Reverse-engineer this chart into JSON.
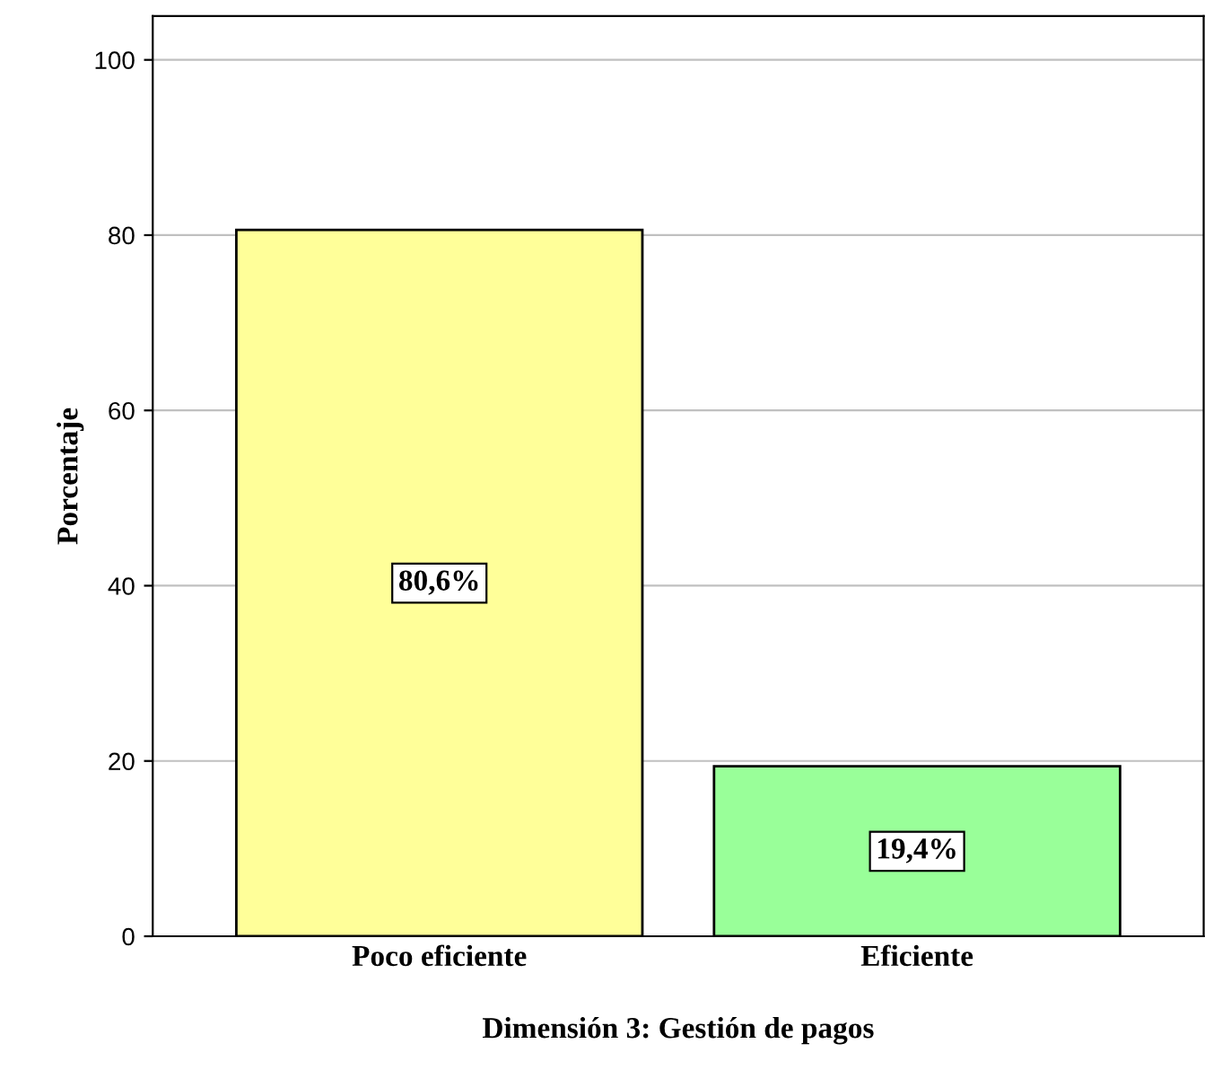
{
  "chart_data": {
    "type": "bar",
    "xlabel": "Dimensión 3: Gestión de pagos",
    "ylabel": "Porcentaje",
    "categories": [
      "Poco eficiente",
      "Eficiente"
    ],
    "values": [
      80.6,
      19.4
    ],
    "colors": [
      "#ffff99",
      "#99ff99"
    ],
    "value_labels": [
      "80,6%",
      "19,4%"
    ],
    "ylim": [
      0,
      105
    ],
    "yticks": [
      0,
      20,
      40,
      60,
      80,
      100
    ],
    "grid": "y"
  }
}
